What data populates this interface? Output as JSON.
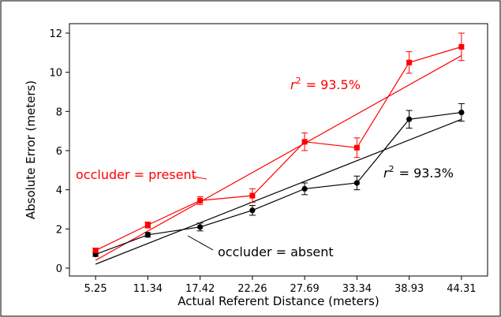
{
  "chart_data": {
    "type": "line",
    "xlabel": "Actual Referent Distance (meters)",
    "ylabel": "Absolute Error (meters)",
    "categories": [
      "5.25",
      "11.34",
      "17.42",
      "22.26",
      "27.69",
      "33.34",
      "38.93",
      "44.31"
    ],
    "ylim": [
      0,
      12
    ],
    "yticks": [
      0,
      2,
      4,
      6,
      8,
      10,
      12
    ],
    "grid": false,
    "series": [
      {
        "name": "occluder = present",
        "color": "#ff0000",
        "marker": "square",
        "values": [
          0.9,
          2.2,
          3.45,
          3.7,
          6.45,
          6.15,
          10.5,
          11.3
        ],
        "error": [
          0.12,
          0.15,
          0.2,
          0.35,
          0.45,
          0.5,
          0.55,
          0.7
        ],
        "fit": [
          0.4,
          10.85
        ],
        "r2_label": "= 93.5%"
      },
      {
        "name": "occluder = absent",
        "color": "#000000",
        "marker": "circle",
        "values": [
          0.7,
          1.7,
          2.1,
          2.95,
          4.05,
          4.35,
          7.6,
          7.95
        ],
        "error": [
          0.1,
          0.12,
          0.2,
          0.25,
          0.3,
          0.35,
          0.45,
          0.45
        ],
        "fit": [
          0.2,
          7.6
        ],
        "r2_label": "= 93.3%"
      }
    ],
    "r2_symbol": "r",
    "r2_superscript": "2"
  }
}
